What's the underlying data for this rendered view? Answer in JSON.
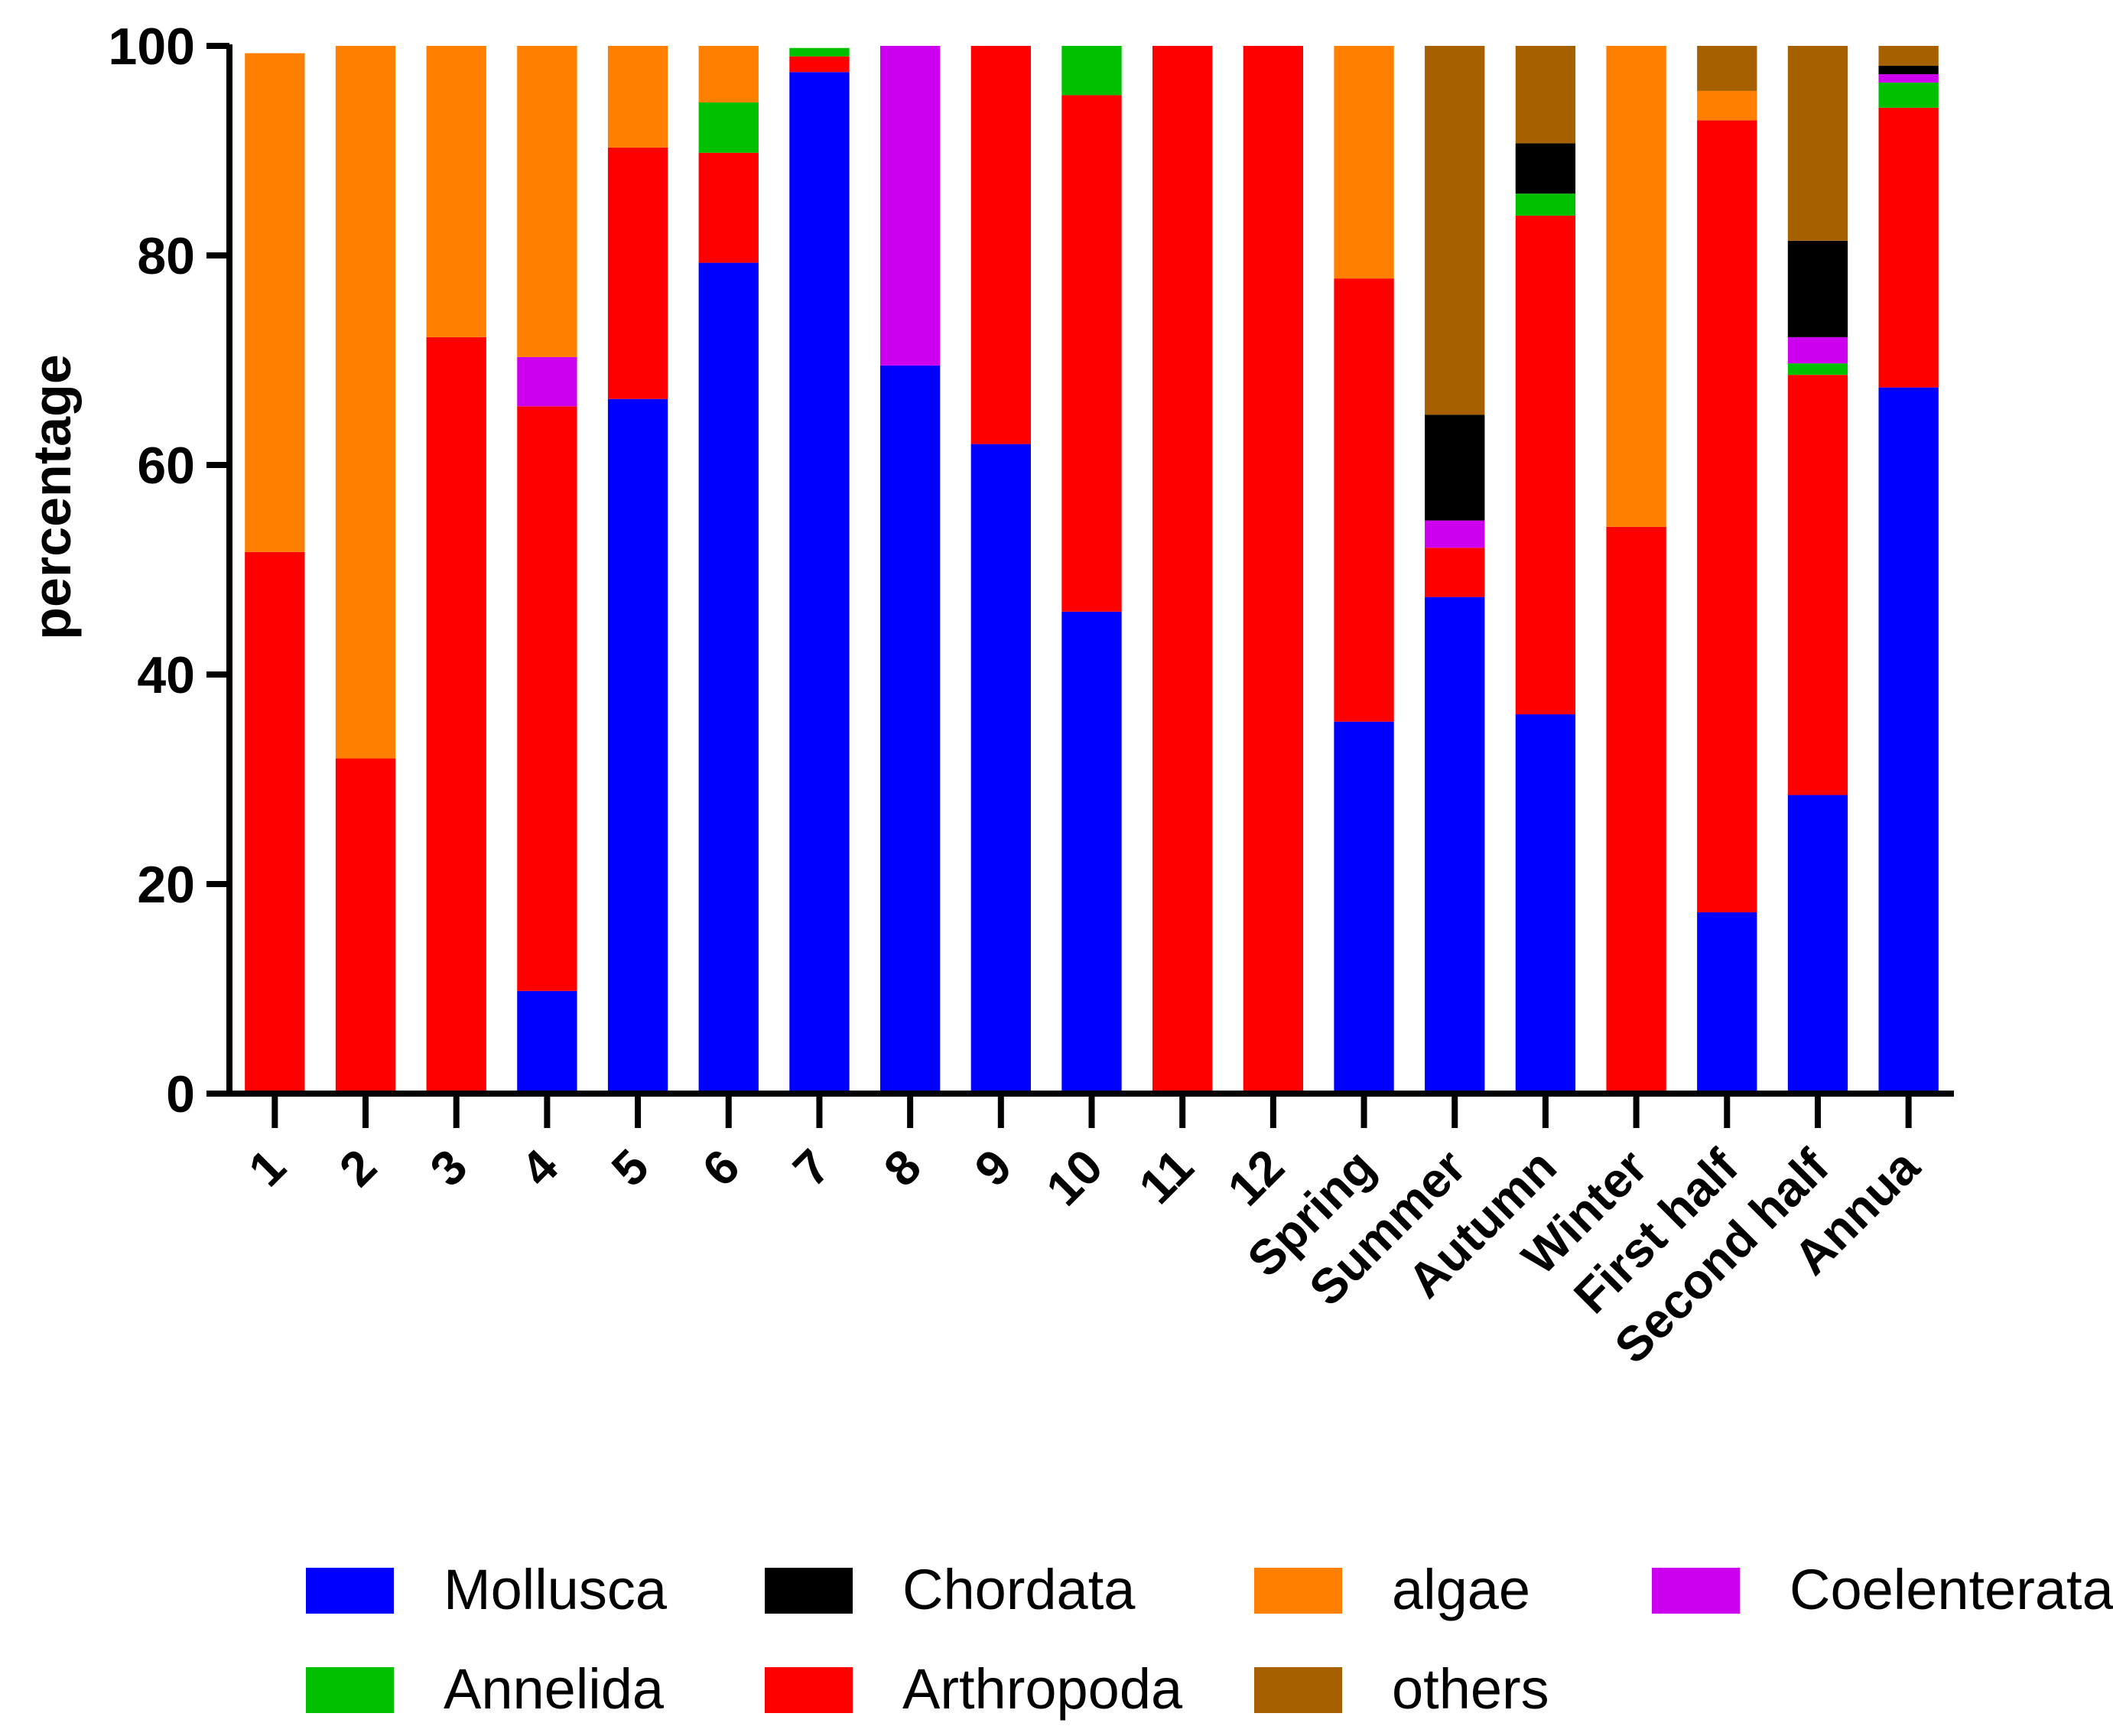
{
  "chart_data": {
    "type": "bar",
    "stacked": true,
    "ylabel": "percentage",
    "xlabel": "",
    "ylim": [
      0,
      100
    ],
    "yticks": [
      0,
      20,
      40,
      60,
      80,
      100
    ],
    "categories": [
      "1",
      "2",
      "3",
      "4",
      "5",
      "6",
      "7",
      "8",
      "9",
      "10",
      "11",
      "12",
      "Spring",
      "Summer",
      "Autumn",
      "Winter",
      "First half",
      "Second half",
      "Annua"
    ],
    "series": [
      {
        "name": "Mollusca",
        "color": "#0000ff",
        "values": [
          0,
          0,
          0,
          9.8,
          66.3,
          79.3,
          97.5,
          69.5,
          62,
          46,
          0,
          0,
          35.5,
          47.4,
          36.2,
          0,
          17.3,
          28.5,
          67.4
        ]
      },
      {
        "name": "Arthropoda",
        "color": "#ff0000",
        "values": [
          51.7,
          32,
          72.2,
          55.8,
          24,
          10.5,
          1.5,
          0,
          38,
          49.3,
          100,
          100,
          42.3,
          4.7,
          47.6,
          54.1,
          75.6,
          40.1,
          26.7
        ]
      },
      {
        "name": "Annelida",
        "color": "#00c000",
        "values": [
          0,
          0,
          0,
          0,
          0,
          4.8,
          0.8,
          0,
          0,
          4.7,
          0,
          0,
          0,
          0,
          2.1,
          0,
          0,
          1.1,
          2.4
        ]
      },
      {
        "name": "Coelenterata",
        "color": "#cc00ee",
        "values": [
          0,
          0,
          0,
          4.7,
          0,
          0,
          0,
          30.5,
          0,
          0,
          0,
          0,
          0,
          2.6,
          0,
          0,
          0,
          2.5,
          0.8
        ]
      },
      {
        "name": "Chordata",
        "color": "#000000",
        "values": [
          0,
          0,
          0,
          0,
          0,
          0,
          0,
          0,
          0,
          0,
          0,
          0,
          0,
          10.1,
          4.8,
          0,
          0,
          9.2,
          0.8
        ]
      },
      {
        "name": "algae",
        "color": "#ff8000",
        "values": [
          47.6,
          68,
          27.8,
          29.7,
          9.7,
          5.4,
          0,
          0,
          0,
          0,
          0,
          0,
          22.2,
          0,
          0,
          45.9,
          2.8,
          0,
          0
        ]
      },
      {
        "name": "others",
        "color": "#a66000",
        "values": [
          0,
          0,
          0,
          0,
          0,
          0,
          0,
          0,
          0,
          0,
          0,
          0,
          0,
          35.2,
          9.3,
          0,
          4.3,
          18.6,
          1.9
        ]
      }
    ],
    "legend": {
      "position": "bottom",
      "order": [
        "Mollusca",
        "Chordata",
        "algae",
        "Coelenterata",
        "Annelida",
        "Arthropoda",
        "others"
      ]
    }
  }
}
